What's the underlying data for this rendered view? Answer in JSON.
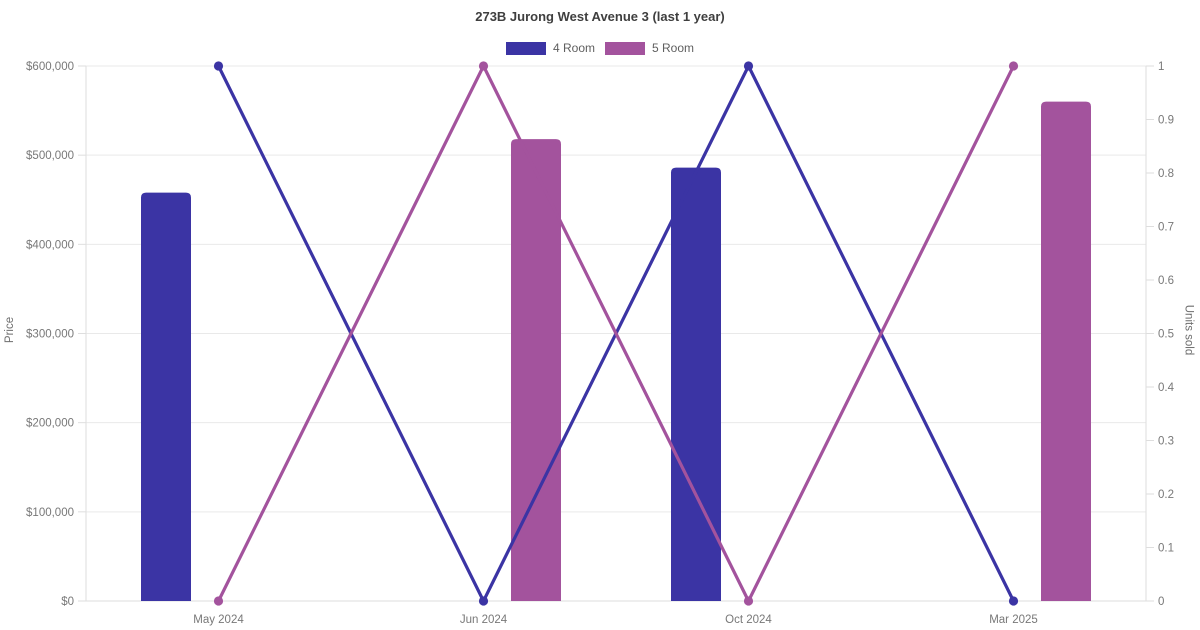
{
  "chart_data": {
    "type": "bar+line dual-axis combo",
    "title": "273B Jurong West Avenue 3 (last 1 year)",
    "categories": [
      "May 2024",
      "Jun 2024",
      "Oct 2024",
      "Mar 2025"
    ],
    "bar_series": [
      {
        "name": "4 Room",
        "color": "#3b34a4",
        "axis": "left",
        "values": [
          458000,
          null,
          486000,
          null
        ]
      },
      {
        "name": "5 Room",
        "color": "#a3539d",
        "axis": "left",
        "values": [
          null,
          518000,
          null,
          560000
        ]
      }
    ],
    "line_series": [
      {
        "name": "4 Room",
        "color": "#3b34a4",
        "axis": "right",
        "values": [
          1,
          0,
          1,
          0
        ]
      },
      {
        "name": "5 Room",
        "color": "#a3539d",
        "axis": "right",
        "values": [
          0,
          1,
          0,
          1
        ]
      }
    ],
    "y_left": {
      "label": "Price",
      "min": 0,
      "max": 600000,
      "tick_labels": [
        "$0",
        "$100,000",
        "$200,000",
        "$300,000",
        "$400,000",
        "$500,000",
        "$600,000"
      ]
    },
    "y_right": {
      "label": "Units sold",
      "min": 0,
      "max": 1,
      "tick_labels": [
        "0",
        "0.1",
        "0.2",
        "0.3",
        "0.4",
        "0.5",
        "0.6",
        "0.7",
        "0.8",
        "0.9",
        "1"
      ]
    },
    "legend": {
      "position": "top",
      "items": [
        "4 Room",
        "5 Room"
      ]
    },
    "grid": "horizontal gridlines at left-axis ticks",
    "colors": {
      "grid_line": "#e9e9e9",
      "axis_line": "#dedede",
      "tick_text": "#787878",
      "title_text": "#3f3f3f"
    }
  }
}
